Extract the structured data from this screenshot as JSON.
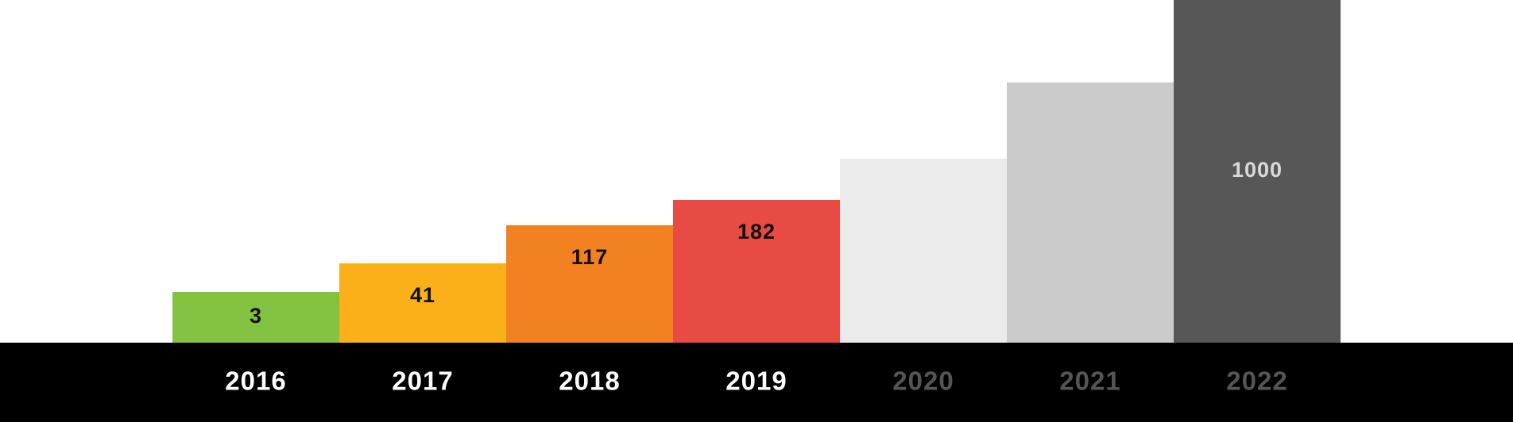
{
  "chart_data": {
    "type": "bar",
    "categories": [
      "2016",
      "2017",
      "2018",
      "2019",
      "2020",
      "2021",
      "2022"
    ],
    "values": [
      3,
      41,
      117,
      182,
      null,
      null,
      1000
    ],
    "value_labels": [
      "3",
      "41",
      "117",
      "182",
      "",
      "",
      "1000"
    ],
    "bar_colors": [
      "#84c341",
      "#fbb01a",
      "#f28122",
      "#e84b43",
      "#ebebeb",
      "#cbcbcb",
      "#575757"
    ],
    "value_label_colors": [
      "#111111",
      "#111111",
      "#111111",
      "#111111",
      "#111111",
      "#111111",
      "#d9d9d9"
    ],
    "category_label_colors": [
      "#ffffff",
      "#ffffff",
      "#ffffff",
      "#ffffff",
      "#555555",
      "#555555",
      "#555555"
    ],
    "axis_band_color": "#000000",
    "title": "",
    "xlabel": "",
    "ylabel": "",
    "grid": false,
    "legend": "none"
  }
}
